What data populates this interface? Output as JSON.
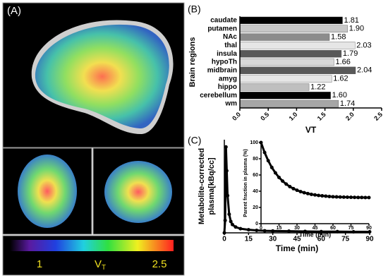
{
  "panel_labels": [
    "(A)",
    "(B)",
    "(C)"
  ],
  "colorbar": {
    "min_label": "1",
    "label": "V",
    "label_sub": "T",
    "max_label": "2.5"
  },
  "chart_data": [
    {
      "type": "bar",
      "horizontal": true,
      "categories": [
        "caudate",
        "putamen",
        "NAc",
        "thal",
        "insula",
        "hypoTh",
        "midbrain",
        "amyg",
        "hippo",
        "cerebellum",
        "wm"
      ],
      "values": [
        1.81,
        1.9,
        1.58,
        2.03,
        1.79,
        1.66,
        2.04,
        1.62,
        1.22,
        1.6,
        1.74
      ],
      "value_labels": [
        "1.81",
        "1.90",
        "1.58",
        "2.03",
        "1.79",
        "1.66",
        "2.04",
        "1.62",
        "1.22",
        "1.60",
        "1.74"
      ],
      "colors": [
        "#000000",
        "#c8c8c8",
        "#8c8c8c",
        "#e6e6e6",
        "#595959",
        "#d9d9d9",
        "#595959",
        "#e6e6e6",
        "#bfbfbf",
        "#000000",
        "#a6a6a6"
      ],
      "xlabel": "VT",
      "ylabel": "Brain regions",
      "xlim": [
        0,
        2.5
      ],
      "xticks": [
        {
          "value": 0,
          "label": "0.0"
        },
        {
          "value": 0.5,
          "label": "0.5"
        },
        {
          "value": 1,
          "label": "1.0"
        },
        {
          "value": 1.5,
          "label": "1.5"
        },
        {
          "value": 2,
          "label": "2.0"
        },
        {
          "value": 2.5,
          "label": "2.5"
        }
      ]
    },
    {
      "type": "line",
      "xlabel": "Time (min)",
      "ylabel": [
        "Metabolite-corrected",
        "plasma[kBq/cc]"
      ],
      "xlim": [
        0,
        90
      ],
      "ylim": [
        0,
        450
      ],
      "xticks": [
        0,
        15,
        30,
        45,
        60,
        75,
        90
      ],
      "x": [
        0,
        0.5,
        1,
        1.5,
        2,
        3,
        4,
        5,
        7,
        10,
        15,
        20,
        25,
        30,
        40,
        50,
        60,
        70,
        80,
        90
      ],
      "series": [
        {
          "color": "#000000",
          "values": [
            0,
            60,
            415,
            300,
            180,
            90,
            55,
            40,
            28,
            20,
            15,
            12,
            10,
            9,
            8,
            7,
            6,
            6,
            5,
            5
          ]
        }
      ]
    },
    {
      "type": "line",
      "xlabel": "Time (min)",
      "ylabel": "Parent fraction in plasma (%)",
      "xlim": [
        0,
        90
      ],
      "ylim": [
        0,
        100
      ],
      "xticks": [
        0,
        15,
        30,
        45,
        60,
        75,
        90
      ],
      "yticks": [
        0,
        20,
        40,
        60,
        80,
        100
      ],
      "x": [
        0,
        3,
        6,
        9,
        12,
        15,
        18,
        21,
        24,
        27,
        30,
        33,
        36,
        39,
        42,
        45,
        48,
        51,
        54,
        57,
        60,
        63,
        66,
        69,
        72,
        75,
        78,
        81,
        84,
        87,
        90
      ],
      "series": [
        {
          "color": "#000000",
          "values": [
            100,
            87.7,
            77.6,
            69.3,
            62.6,
            57.0,
            52.5,
            48.8,
            45.7,
            43.2,
            41.2,
            39.5,
            38.2,
            37.1,
            36.1,
            35.4,
            34.8,
            34.3,
            33.9,
            33.5,
            33.2,
            33.0,
            32.8,
            32.7,
            32.6,
            32.5,
            32.4,
            32.3,
            32.3,
            32.2,
            32.2
          ]
        }
      ]
    }
  ]
}
